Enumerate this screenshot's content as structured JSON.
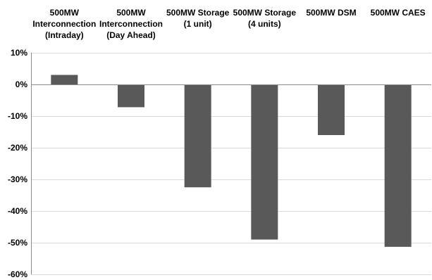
{
  "chart_data": {
    "type": "bar",
    "categories": [
      [
        "500MW",
        "Interconnection",
        "(Intraday)"
      ],
      [
        "500MW",
        "Interconnection",
        "(Day Ahead)"
      ],
      [
        "500MW Storage",
        "(1 unit)"
      ],
      [
        "500MW Storage",
        "(4 units)"
      ],
      [
        "500MW DSM"
      ],
      [
        "500MW CAES"
      ]
    ],
    "values": [
      3,
      -7.2,
      -32.5,
      -49,
      -16,
      -51.3
    ],
    "ylim": [
      -60,
      10
    ],
    "yticks": [
      10,
      0,
      -10,
      -20,
      -30,
      -40,
      -50,
      -60
    ],
    "ytick_labels": [
      "10%",
      "0%",
      "-10%",
      "-20%",
      "-30%",
      "-40%",
      "-50%",
      "-60%"
    ],
    "grid": true,
    "category_labels_position": "top",
    "colors": {
      "bar": "#595959",
      "grid": "#d9d9d9",
      "axis": "#8c8c8c"
    }
  }
}
